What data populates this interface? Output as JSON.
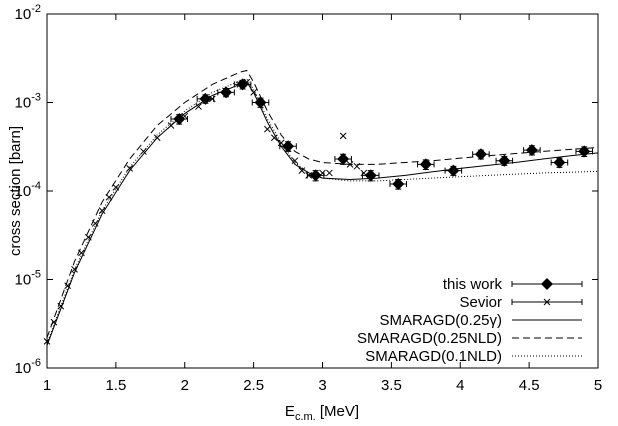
{
  "chart_data": {
    "type": "scatter",
    "xlabel": "Ec.m. [MeV]",
    "ylabel": "cross section [barn]",
    "xlim": [
      1,
      5
    ],
    "xticks": [
      1,
      1.5,
      2,
      2.5,
      3,
      3.5,
      4,
      4.5,
      5
    ],
    "ylim": [
      1e-06,
      0.01
    ],
    "log_y": true,
    "yticks": [
      {
        "value": 1e-06,
        "label": "10-6"
      },
      {
        "value": 1e-05,
        "label": "10-5"
      },
      {
        "value": 0.0001,
        "label": "10-4"
      },
      {
        "value": 0.001,
        "label": "10-3"
      },
      {
        "value": 0.01,
        "label": "10-2"
      }
    ],
    "legend": "bottom right",
    "series": [
      {
        "name": "this work",
        "type": "scatter",
        "marker": "diamond",
        "color": "#000000",
        "x": [
          1.96,
          2.15,
          2.3,
          2.42,
          2.55,
          2.75,
          2.95,
          3.15,
          3.35,
          3.55,
          3.75,
          3.95,
          4.15,
          4.32,
          4.52,
          4.72,
          4.9
        ],
        "values": [
          0.00065,
          0.0011,
          0.0013,
          0.0016,
          0.001,
          0.00032,
          0.00015,
          0.00023,
          0.00015,
          0.00012,
          0.0002,
          0.00017,
          0.00026,
          0.00022,
          0.00029,
          0.00021,
          0.00028
        ],
        "xerr": [
          0.06,
          0.06,
          0.06,
          0.06,
          0.06,
          0.06,
          0.06,
          0.06,
          0.06,
          0.06,
          0.06,
          0.06,
          0.06,
          0.06,
          0.06,
          0.06,
          0.06
        ],
        "yerr": [
          8e-05,
          0.00012,
          0.00014,
          0.00018,
          0.00012,
          4e-05,
          2e-05,
          3e-05,
          2e-05,
          1.5e-05,
          2.5e-05,
          2e-05,
          3e-05,
          2.5e-05,
          3.5e-05,
          2.5e-05,
          3.5e-05
        ]
      },
      {
        "name": "Sevior",
        "type": "scatter",
        "marker": "cross",
        "color": "#000000",
        "x": [
          1.0,
          1.05,
          1.1,
          1.15,
          1.2,
          1.25,
          1.3,
          1.35,
          1.4,
          1.45,
          1.5,
          1.6,
          1.7,
          1.8,
          1.9,
          2.0,
          2.1,
          2.2,
          2.3,
          2.4,
          2.45,
          2.5,
          2.55,
          2.6,
          2.65,
          2.7,
          2.75,
          2.8,
          2.85,
          2.9,
          3.0,
          3.05,
          3.15,
          3.2,
          3.25,
          3.3
        ],
        "values": [
          2e-06,
          3.3e-06,
          5e-06,
          8.5e-06,
          1.3e-05,
          2e-05,
          3e-05,
          4.3e-05,
          6e-05,
          8.5e-05,
          0.00011,
          0.00018,
          0.00028,
          0.0004,
          0.00055,
          0.0007,
          0.0009,
          0.0011,
          0.0013,
          0.0016,
          0.0017,
          0.0013,
          0.001,
          0.0005,
          0.0004,
          0.00035,
          0.0003,
          0.00022,
          0.00017,
          0.00015,
          0.00016,
          0.00016,
          0.00042,
          0.0002,
          0.00019,
          0.00016
        ]
      },
      {
        "name": "SMARAGD(0.25γ)",
        "type": "line",
        "dash": "",
        "color": "#000000",
        "x": [
          1,
          1.2,
          1.4,
          1.6,
          1.8,
          2.0,
          2.2,
          2.4,
          2.45,
          2.5,
          2.6,
          2.7,
          2.8,
          2.9,
          3.0,
          3.2,
          3.4,
          3.6,
          3.8,
          4.0,
          4.2,
          4.4,
          4.6,
          4.8,
          5.0
        ],
        "values": [
          1.8e-06,
          1.2e-05,
          5.5e-05,
          0.00017,
          0.0004,
          0.00075,
          0.0012,
          0.0016,
          0.0017,
          0.0013,
          0.0006,
          0.00032,
          0.0002,
          0.00016,
          0.00014,
          0.000135,
          0.00014,
          0.00015,
          0.000165,
          0.00018,
          0.000195,
          0.00021,
          0.00023,
          0.00025,
          0.00027
        ]
      },
      {
        "name": "SMARAGD(0.25NLD)",
        "type": "line",
        "dash": "7 4",
        "color": "#000000",
        "x": [
          1,
          1.2,
          1.4,
          1.6,
          1.8,
          2.0,
          2.2,
          2.4,
          2.45,
          2.5,
          2.6,
          2.7,
          2.8,
          2.9,
          3.0,
          3.2,
          3.4,
          3.6,
          3.8,
          4.0,
          4.2,
          4.4,
          4.6,
          4.8,
          5.0
        ],
        "values": [
          2.2e-06,
          1.6e-05,
          7.5e-05,
          0.00023,
          0.00055,
          0.001,
          0.0016,
          0.0022,
          0.0023,
          0.0017,
          0.0008,
          0.00043,
          0.00028,
          0.00023,
          0.00021,
          0.0002,
          0.0002,
          0.00021,
          0.00022,
          0.000235,
          0.00025,
          0.000265,
          0.00028,
          0.000295,
          0.00031
        ]
      },
      {
        "name": "SMARAGD(0.1NLD)",
        "type": "line",
        "dash": "1 2",
        "color": "#000000",
        "x": [
          1,
          1.2,
          1.4,
          1.6,
          1.8,
          2.0,
          2.2,
          2.4,
          2.45,
          2.5,
          2.6,
          2.7,
          2.8,
          2.9,
          3.0,
          3.2,
          3.4,
          3.6,
          3.8,
          4.0,
          4.2,
          4.4,
          4.6,
          4.8,
          5.0
        ],
        "values": [
          1.9e-06,
          1.3e-05,
          6e-05,
          0.000185,
          0.00043,
          0.0008,
          0.0013,
          0.00175,
          0.00185,
          0.0014,
          0.00065,
          0.00035,
          0.00021,
          0.00016,
          0.00014,
          0.00013,
          0.00013,
          0.000135,
          0.00014,
          0.000145,
          0.00015,
          0.000155,
          0.00016,
          0.000163,
          0.000167
        ]
      }
    ]
  }
}
